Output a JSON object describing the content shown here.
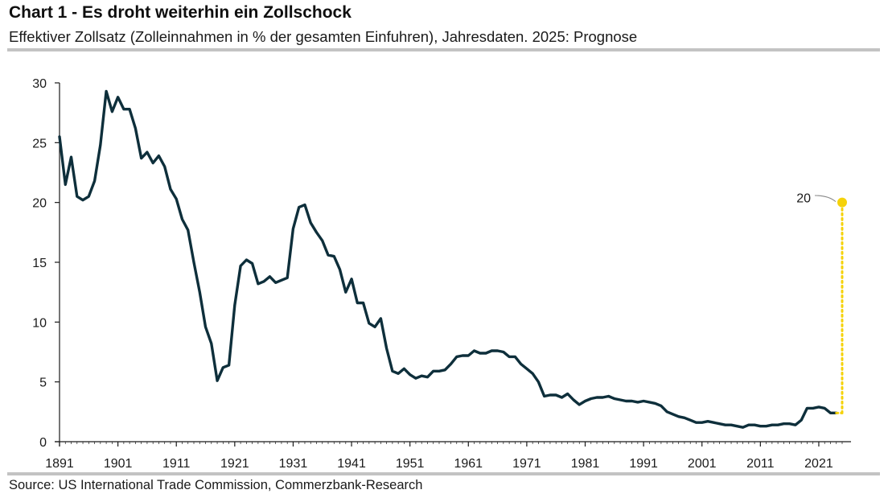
{
  "title": "Chart 1 - Es droht weiterhin ein Zollschock",
  "subtitle": "Effektiver Zollsatz (Zolleinnahmen in % der gesamten Einfuhren), Jahresdaten. 2025: Prognose",
  "source": "Source: US International Trade Commission, Commerzbank-Research",
  "colors": {
    "line": "#0e2f3b",
    "forecast": "#f5d20a",
    "rule": "#c3c3c3"
  },
  "chart_data": {
    "type": "line",
    "xlim": [
      1891,
      2025
    ],
    "ylim": [
      0,
      30
    ],
    "yticks": [
      "0",
      "5",
      "10",
      "15",
      "20",
      "25",
      "30"
    ],
    "xticks": [
      "1891",
      "1901",
      "1911",
      "1921",
      "1931",
      "1941",
      "1951",
      "1961",
      "1971",
      "1981",
      "1991",
      "2001",
      "2011",
      "2021"
    ],
    "grid": false,
    "series": [
      {
        "x": [
          1891,
          1892,
          1893,
          1894,
          1895,
          1896,
          1897,
          1898,
          1899,
          1900,
          1901,
          1902,
          1903,
          1904,
          1905,
          1906,
          1907,
          1908,
          1909,
          1910,
          1911,
          1912,
          1913,
          1914,
          1915,
          1916,
          1917,
          1918,
          1919,
          1920,
          1921,
          1922,
          1923,
          1924,
          1925,
          1926,
          1927,
          1928,
          1929,
          1930,
          1931,
          1932,
          1933,
          1934,
          1935,
          1936,
          1937,
          1938,
          1939,
          1940,
          1941,
          1942,
          1943,
          1944,
          1945,
          1946,
          1947,
          1948,
          1949,
          1950,
          1951,
          1952,
          1953,
          1954,
          1955,
          1956,
          1957,
          1958,
          1959,
          1960,
          1961,
          1962,
          1963,
          1964,
          1965,
          1966,
          1967,
          1968,
          1969,
          1970,
          1971,
          1972,
          1973,
          1974,
          1975,
          1976,
          1977,
          1978,
          1979,
          1980,
          1981,
          1982,
          1983,
          1984,
          1985,
          1986,
          1987,
          1988,
          1989,
          1990,
          1991,
          1992,
          1993,
          1994,
          1995,
          1996,
          1997,
          1998,
          1999,
          2000,
          2001,
          2002,
          2003,
          2004,
          2005,
          2006,
          2007,
          2008,
          2009,
          2010,
          2011,
          2012,
          2013,
          2014,
          2015,
          2016,
          2017,
          2018,
          2019,
          2020,
          2021,
          2022,
          2023,
          2024
        ],
        "values": [
          25.5,
          21.5,
          23.8,
          20.5,
          20.2,
          20.5,
          21.8,
          24.8,
          29.3,
          27.6,
          28.8,
          27.8,
          27.8,
          26.2,
          23.7,
          24.2,
          23.3,
          23.9,
          23.0,
          21.1,
          20.3,
          18.6,
          17.7,
          15.0,
          12.5,
          9.6,
          8.2,
          5.1,
          6.2,
          6.4,
          11.4,
          14.7,
          15.2,
          14.9,
          13.2,
          13.4,
          13.8,
          13.3,
          13.5,
          13.7,
          17.8,
          19.6,
          19.8,
          18.3,
          17.5,
          16.8,
          15.6,
          15.5,
          14.4,
          12.5,
          13.6,
          11.6,
          11.6,
          9.9,
          9.6,
          10.3,
          7.8,
          5.9,
          5.7,
          6.1,
          5.6,
          5.3,
          5.5,
          5.4,
          5.9,
          5.9,
          6.0,
          6.5,
          7.1,
          7.2,
          7.2,
          7.6,
          7.4,
          7.4,
          7.6,
          7.6,
          7.5,
          7.1,
          7.1,
          6.5,
          6.1,
          5.7,
          5.0,
          3.8,
          3.9,
          3.9,
          3.7,
          4.0,
          3.5,
          3.1,
          3.4,
          3.6,
          3.7,
          3.7,
          3.8,
          3.6,
          3.5,
          3.4,
          3.4,
          3.3,
          3.4,
          3.3,
          3.2,
          3.0,
          2.5,
          2.3,
          2.1,
          2.0,
          1.8,
          1.6,
          1.6,
          1.7,
          1.6,
          1.5,
          1.4,
          1.4,
          1.3,
          1.2,
          1.4,
          1.4,
          1.3,
          1.3,
          1.4,
          1.4,
          1.5,
          1.5,
          1.4,
          1.8,
          2.8,
          2.8,
          2.9,
          2.8,
          2.4,
          2.4
        ]
      }
    ],
    "forecast": {
      "x": 2025,
      "y": 20,
      "from_x": 2024,
      "from_y": 2.4,
      "label": "20"
    }
  }
}
